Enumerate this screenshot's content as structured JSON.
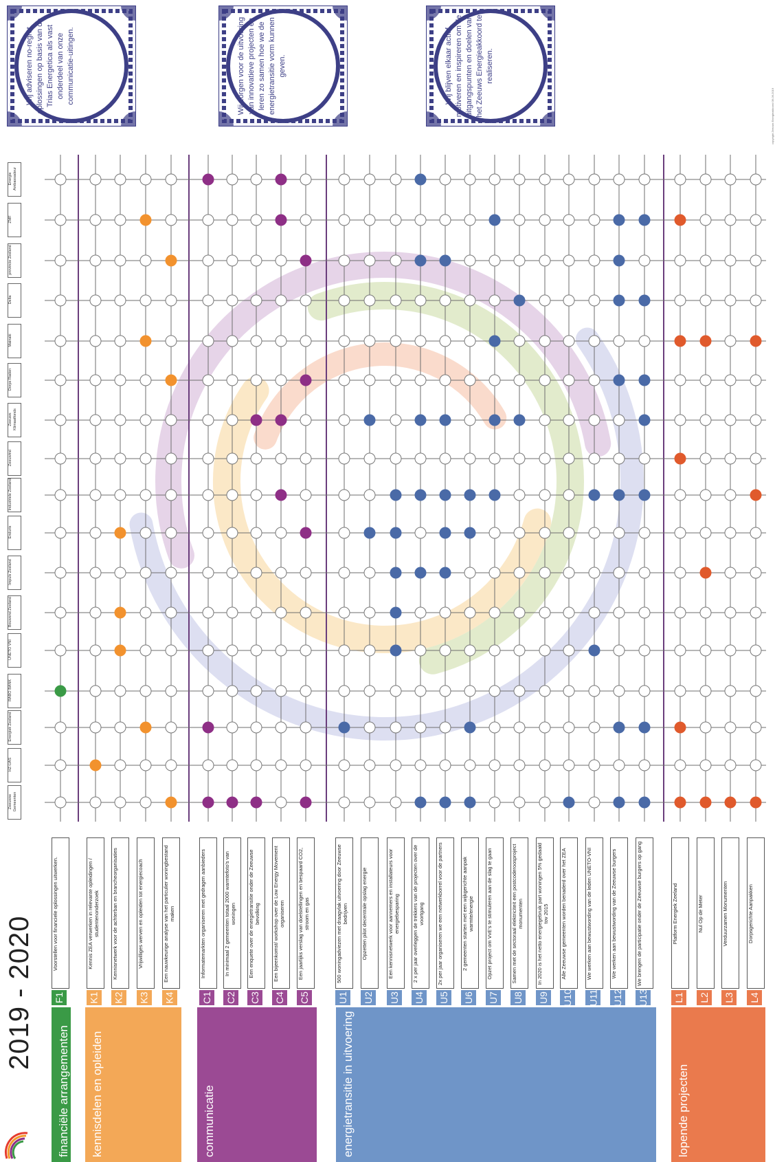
{
  "title": "2019 - 2020",
  "copyright": "copyright Zeeuws Energieakkoord 06-06-2019",
  "tiles": [
    {
      "text": "Wij adviseren no-regret oplossingen op basis van de Trias Energetica als vast onderdeel van onze communicatie-uitingen."
    },
    {
      "text": "Wij zorgen voor de uitvoering van innovatieve projecten en leren zo samen hoe we de energietransitie vorm kunnen geven."
    },
    {
      "text": "Wij blijven elkaar actief motiveren en inspireren om de uitgangspunten en doelen van het Zeeuws Energieakkoord te realiseren."
    }
  ],
  "organisations": [
    "Zeeuwse Gemeenten",
    "HZ-UAS",
    "Energiek Zeeland",
    "RABO BANK",
    "UNETO VNI",
    "Bouwend Zeeland",
    "Impuls Zeeland",
    "Enduris",
    "Industriele Zeeland",
    "Zeeuwind",
    "Zeeuws Klimaatfonds",
    "Dorps Raden",
    "Mainaki",
    "Delta",
    "provincie Zeeland",
    "ZMF",
    "Energie Ambassadeur"
  ],
  "groups": [
    {
      "label": "financiële arrangementen",
      "color": "#3a9a46",
      "rows": [
        {
          "code": "F1",
          "text": "Voorstellen voor financiele oplossingen uitwerken."
        }
      ]
    },
    {
      "label": "kennisdelen en opleiden",
      "color": "#f3a857",
      "rows": [
        {
          "code": "K1",
          "text": "Kennis ZEA verwerken in relevante opleidingen / studentenonderzoek"
        },
        {
          "code": "K2",
          "text": "Kennisnetwerk voor de achterban en brancheorganisaties"
        },
        {
          "code": "K3",
          "text": "Vrijwilliges werven en opleiden tot energiecoach"
        },
        {
          "code": "K4",
          "text": "Een nauwkeurige analyse van het particulier woningbestand maken"
        }
      ]
    },
    {
      "label": "communicatie",
      "color": "#9b4a94",
      "rows": [
        {
          "code": "C1",
          "text": "Informatemarkten organiseren met gedragen aanbieders"
        },
        {
          "code": "C2",
          "text": "In minimaal 2 gemeenten totaal 2000 warmtefoto's van woningen"
        },
        {
          "code": "C3",
          "text": "Een enquete over de energietransitie onder de Zeeuwse bevolking"
        },
        {
          "code": "C4",
          "text": "Een bijeenkomst/ workshop over de Low Energy Movement organiseren"
        },
        {
          "code": "C5",
          "text": "Een jaarlijks verslag van doelstellingen en bespaard CO2, stroom en gas"
        }
      ]
    },
    {
      "label": "energietransitie in uitvoering",
      "color": "#6f95c8",
      "rows": [
        {
          "code": "U1",
          "text": "500 woningadviezen met draagvlak uitvoering door Zeeuwse bedrijven"
        },
        {
          "code": "U2",
          "text": "Opzetten pilot decentrale opslag energie"
        },
        {
          "code": "U3",
          "text": "Een kennisnetwerk voor aannemers en installateurs voor energiebesparing"
        },
        {
          "code": "U4",
          "text": "2 x per jaar overleggen de trekkers van de projecten over de voortgang"
        },
        {
          "code": "U5",
          "text": "2x per jaar organiseren we een netwerkborrel voor de partners"
        },
        {
          "code": "U6",
          "text": "2 gemeenten starten met een wijkgerichte aanpak warmte/energie"
        },
        {
          "code": "U7",
          "text": "Opzet project om VvE's te stimuleren aan de slag te gaan"
        },
        {
          "code": "U8",
          "text": "Samen met de sectoraal elektriciteit een postcoderoosproject monumenten"
        },
        {
          "code": "U9",
          "text": "In 2020 is het netto energiegebruik part woningen 5% gedaald tov 2015"
        },
        {
          "code": "U10",
          "text": "Alle Zeeuwse gemeenten worden benaderd over het ZEA"
        },
        {
          "code": "U11",
          "text": "We werken aan bewustwording van de leden UNETO-VNI"
        },
        {
          "code": "U12",
          "text": "We werken aan bewustwording van de Zeeuwse burgers"
        },
        {
          "code": "U13",
          "text": "We brengen de participatie onder de Zeeuwse burgers op gang"
        }
      ]
    },
    {
      "label": "lopende projecten",
      "color": "#ea7a4d",
      "rows": [
        {
          "code": "L1",
          "text": "Platform Energiek Zeeland"
        },
        {
          "code": "L2",
          "text": "Nul Op de Meter"
        },
        {
          "code": "L3",
          "text": "Verduurzamen Monumenten"
        },
        {
          "code": "L4",
          "text": "Dorpsgerichte Aanpakken"
        }
      ]
    }
  ],
  "dot_colors": {
    "F": "#3a9a46",
    "K": "#f2922e",
    "C": "#8e2f86",
    "U": "#4a6aa7",
    "L": "#e05a2c"
  },
  "filled": {
    "F1": [
      3
    ],
    "K1": [
      1
    ],
    "K2": [
      4,
      5,
      7
    ],
    "K3": [
      2,
      12,
      15
    ],
    "K4": [
      0,
      11,
      14
    ],
    "C1": [
      0,
      2,
      16
    ],
    "C2": [
      0
    ],
    "C3": [
      0,
      10
    ],
    "C4": [
      8,
      10,
      15,
      16
    ],
    "C5": [
      0,
      7,
      11,
      14
    ],
    "U1": [
      2
    ],
    "U2": [
      7,
      10
    ],
    "U3": [
      4,
      5,
      6,
      7,
      8
    ],
    "U4": [
      0,
      6,
      8,
      10,
      14,
      16
    ],
    "U5": [
      0,
      6,
      7,
      8,
      10,
      14
    ],
    "U6": [
      0,
      2,
      7,
      8
    ],
    "U7": [
      8,
      10,
      12,
      15
    ],
    "U8": [
      10,
      13
    ],
    "U9": [],
    "U10": [
      0
    ],
    "U11": [
      4,
      8
    ],
    "U12": [
      0,
      2,
      8,
      11,
      13,
      14,
      15
    ],
    "U13": [
      0,
      2,
      8,
      10,
      11,
      13,
      15
    ],
    "L1": [
      0,
      2,
      9,
      12,
      15
    ],
    "L2": [
      0,
      6,
      12
    ],
    "L3": [
      0
    ],
    "L4": [
      0,
      8,
      12
    ]
  }
}
